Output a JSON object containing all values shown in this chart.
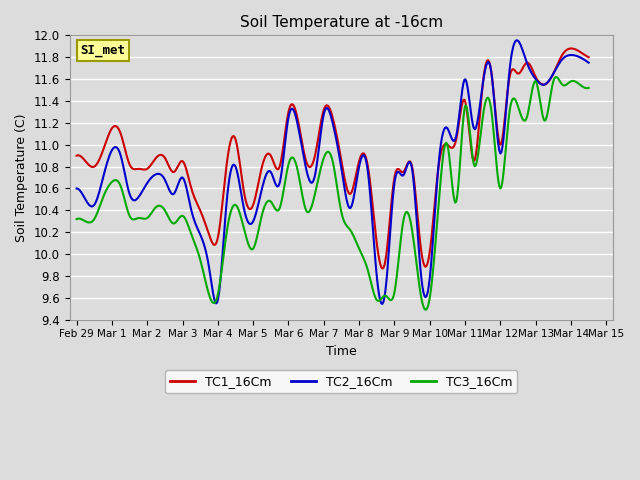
{
  "title": "Soil Temperature at -16cm",
  "xlabel": "Time",
  "ylabel": "Soil Temperature (C)",
  "ylim": [
    9.4,
    12.0
  ],
  "background_color": "#DCDCDC",
  "plot_bg_color": "#DCDCDC",
  "grid_color": "white",
  "tc1_color": "#CC0000",
  "tc2_color": "#0000CC",
  "tc3_color": "#00AA00",
  "legend_label": "SI_met",
  "series_labels": [
    "TC1_16Cm",
    "TC2_16Cm",
    "TC3_16Cm"
  ],
  "xtick_labels": [
    "Feb 29",
    "Mar 1",
    "Mar 2",
    "Mar 3",
    "Mar 4",
    "Mar 5",
    "Mar 6",
    "Mar 7",
    "Mar 8",
    "Mar 9",
    "Mar 10",
    "Mar 11",
    "Mar 12",
    "Mar 13",
    "Mar 14",
    "Mar 15"
  ],
  "xtick_positions": [
    0,
    1,
    2,
    3,
    4,
    5,
    6,
    7,
    8,
    9,
    10,
    11,
    12,
    13,
    14,
    15
  ],
  "ytick_positions": [
    9.4,
    9.6,
    9.8,
    10.0,
    10.2,
    10.4,
    10.6,
    10.8,
    11.0,
    11.2,
    11.4,
    11.6,
    11.8,
    12.0
  ],
  "tc1_knots": [
    0,
    0.25,
    0.5,
    0.75,
    1.0,
    1.25,
    1.5,
    1.75,
    2.0,
    2.25,
    2.5,
    2.75,
    3.0,
    3.25,
    3.5,
    3.75,
    4.0,
    4.25,
    4.5,
    4.75,
    5.0,
    5.25,
    5.5,
    5.75,
    6.0,
    6.25,
    6.5,
    6.75,
    7.0,
    7.25,
    7.5,
    7.75,
    8.0,
    8.25,
    8.5,
    8.75,
    9.0,
    9.25,
    9.5,
    9.75,
    10.0,
    10.25,
    10.5,
    10.75,
    11.0,
    11.25,
    11.5,
    11.75,
    12.0,
    12.25,
    12.5,
    12.75,
    13.0,
    13.25,
    13.5,
    13.75,
    14.0,
    14.25,
    14.5
  ],
  "tc1_vals": [
    10.9,
    10.85,
    10.8,
    10.95,
    11.15,
    11.1,
    10.82,
    10.78,
    10.78,
    10.88,
    10.88,
    10.75,
    10.85,
    10.6,
    10.4,
    10.18,
    10.15,
    10.82,
    11.05,
    10.55,
    10.45,
    10.8,
    10.9,
    10.8,
    11.3,
    11.25,
    10.85,
    10.9,
    11.32,
    11.25,
    10.85,
    10.55,
    10.85,
    10.8,
    10.1,
    9.95,
    10.7,
    10.75,
    10.8,
    10.05,
    10.02,
    10.8,
    11.0,
    11.05,
    11.4,
    10.85,
    11.55,
    11.65,
    11.0,
    11.6,
    11.65,
    11.75,
    11.62,
    11.55,
    11.65,
    11.82,
    11.88,
    11.85,
    11.8
  ],
  "tc2_knots": [
    0,
    0.25,
    0.5,
    0.75,
    1.0,
    1.25,
    1.5,
    1.75,
    2.0,
    2.25,
    2.5,
    2.75,
    3.0,
    3.25,
    3.5,
    3.75,
    4.0,
    4.25,
    4.5,
    4.75,
    5.0,
    5.25,
    5.5,
    5.75,
    6.0,
    6.25,
    6.5,
    6.75,
    7.0,
    7.25,
    7.5,
    7.75,
    8.0,
    8.25,
    8.5,
    8.75,
    9.0,
    9.25,
    9.5,
    9.75,
    10.0,
    10.25,
    10.5,
    10.75,
    11.0,
    11.25,
    11.5,
    11.75,
    12.0,
    12.25,
    12.5,
    12.75,
    13.0,
    13.25,
    13.5,
    13.75,
    14.0,
    14.25,
    14.5
  ],
  "tc2_vals": [
    10.6,
    10.5,
    10.45,
    10.7,
    10.95,
    10.9,
    10.55,
    10.52,
    10.65,
    10.73,
    10.68,
    10.55,
    10.7,
    10.4,
    10.18,
    9.88,
    9.58,
    10.48,
    10.8,
    10.4,
    10.3,
    10.6,
    10.75,
    10.65,
    11.25,
    11.2,
    10.78,
    10.72,
    11.28,
    11.2,
    10.78,
    10.42,
    10.8,
    10.75,
    9.8,
    9.68,
    10.65,
    10.72,
    10.78,
    9.82,
    9.78,
    10.82,
    11.15,
    11.08,
    11.6,
    11.15,
    11.55,
    11.65,
    10.92,
    11.65,
    11.95,
    11.75,
    11.6,
    11.55,
    11.65,
    11.78,
    11.82,
    11.8,
    11.75
  ],
  "tc3_knots": [
    0,
    0.25,
    0.5,
    0.75,
    1.0,
    1.25,
    1.5,
    1.75,
    2.0,
    2.25,
    2.5,
    2.75,
    3.0,
    3.25,
    3.5,
    3.75,
    4.0,
    4.25,
    4.5,
    4.75,
    5.0,
    5.25,
    5.5,
    5.75,
    6.0,
    6.25,
    6.5,
    6.75,
    7.0,
    7.25,
    7.5,
    7.75,
    8.0,
    8.25,
    8.5,
    8.75,
    9.0,
    9.25,
    9.5,
    9.75,
    10.0,
    10.25,
    10.5,
    10.75,
    11.0,
    11.25,
    11.5,
    11.75,
    12.0,
    12.25,
    12.5,
    12.75,
    13.0,
    13.25,
    13.5,
    13.75,
    14.0,
    14.25,
    14.5
  ],
  "tc3_vals": [
    10.32,
    10.3,
    10.32,
    10.52,
    10.66,
    10.62,
    10.35,
    10.33,
    10.33,
    10.43,
    10.4,
    10.28,
    10.35,
    10.18,
    9.95,
    9.63,
    9.63,
    10.2,
    10.45,
    10.22,
    10.05,
    10.36,
    10.48,
    10.42,
    10.82,
    10.78,
    10.4,
    10.55,
    10.88,
    10.85,
    10.38,
    10.22,
    10.05,
    9.85,
    9.58,
    9.62,
    9.65,
    10.3,
    10.22,
    9.62,
    9.6,
    10.45,
    11.0,
    10.48,
    11.35,
    10.82,
    11.25,
    11.3,
    10.6,
    11.28,
    11.35,
    11.25,
    11.58,
    11.22,
    11.58,
    11.55,
    11.58,
    11.55,
    11.52
  ]
}
